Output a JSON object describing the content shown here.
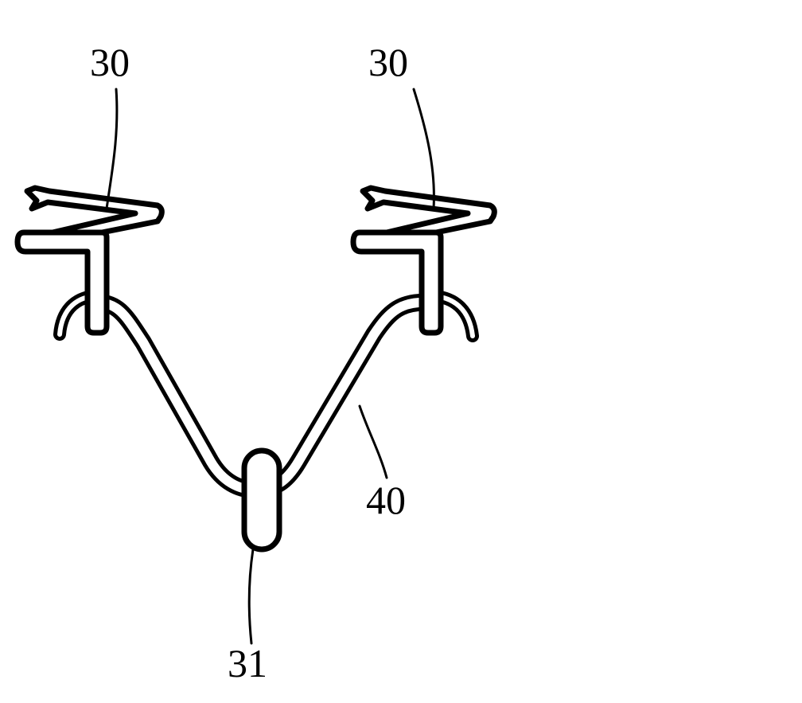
{
  "figure": {
    "labels": {
      "left_hook": "30",
      "right_hook": "30",
      "clip": "31",
      "wire": "40"
    },
    "colors": {
      "line": "#000000",
      "background": "#ffffff"
    }
  }
}
